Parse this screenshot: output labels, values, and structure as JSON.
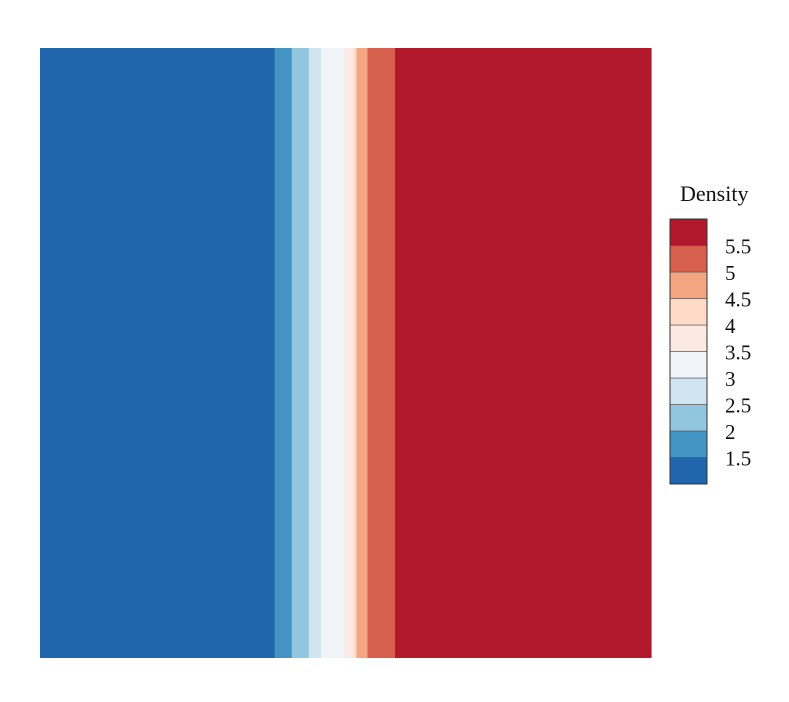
{
  "chart_data": {
    "type": "heatmap",
    "title": "",
    "xlabel": "",
    "ylabel": "",
    "colorbar": {
      "title": "Density",
      "levels": [
        1.5,
        2,
        2.5,
        3,
        3.5,
        4,
        4.5,
        5,
        5.5
      ],
      "tick_labels": [
        "1.5",
        "2",
        "2.5",
        "3",
        "3.5",
        "4",
        "4.5",
        "5",
        "5.5"
      ],
      "colors": [
        "#2166ac",
        "#4393c3",
        "#92c5de",
        "#d1e5f0",
        "#f0f4f8",
        "#fbe9e4",
        "#fddbc7",
        "#f4a582",
        "#d6604d",
        "#b2182b"
      ]
    },
    "bands": [
      {
        "density": 1.5,
        "color": "#2166ac",
        "width": 0.384
      },
      {
        "density": 2,
        "color": "#4393c3",
        "width": 0.028
      },
      {
        "density": 2.5,
        "color": "#92c5de",
        "width": 0.028
      },
      {
        "density": 3,
        "color": "#d1e5f0",
        "width": 0.02
      },
      {
        "density": 3.5,
        "color": "#f0f4f8",
        "width": 0.038
      },
      {
        "density": 4,
        "color": "#fbe9e4",
        "width": 0.015
      },
      {
        "density": 4.5,
        "color": "#fddbc7",
        "width": 0.005
      },
      {
        "density": 5,
        "color": "#f4a582",
        "width": 0.018
      },
      {
        "density": 5.5,
        "color": "#d6604d",
        "width": 0.045
      },
      {
        "density": 6,
        "color": "#b2182b",
        "width": 0.419
      }
    ]
  }
}
